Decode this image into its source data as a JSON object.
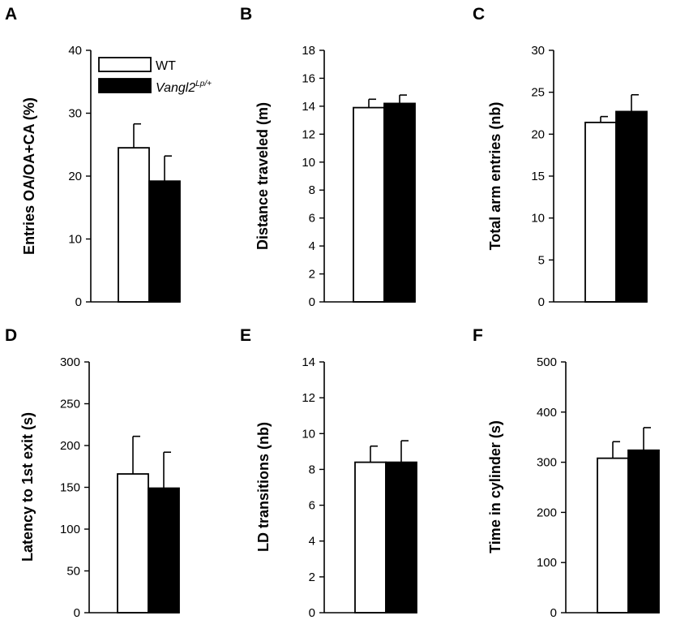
{
  "legend": {
    "series": [
      {
        "name": "WT",
        "fill": "#ffffff"
      },
      {
        "name": "Vangl2",
        "superscript": "Lp/+",
        "fill": "#000000"
      }
    ]
  },
  "chart_data": [
    {
      "panel": "A",
      "type": "bar",
      "ylabel": "Entries OA/OA+CA (%)",
      "ylim": [
        0,
        40
      ],
      "yticks": [
        0,
        10,
        20,
        30,
        40
      ],
      "series": [
        {
          "name": "WT",
          "value": 24.5,
          "error": 3.8
        },
        {
          "name": "Vangl2 Lp/+",
          "value": 19.2,
          "error": 4.0
        }
      ]
    },
    {
      "panel": "B",
      "type": "bar",
      "ylabel": "Distance traveled (m)",
      "ylim": [
        0,
        18
      ],
      "yticks": [
        0,
        2,
        4,
        6,
        8,
        10,
        12,
        14,
        16,
        18
      ],
      "series": [
        {
          "name": "WT",
          "value": 13.9,
          "error": 0.6
        },
        {
          "name": "Vangl2 Lp/+",
          "value": 14.2,
          "error": 0.6
        }
      ]
    },
    {
      "panel": "C",
      "type": "bar",
      "ylabel": "Total arm entries (nb)",
      "ylim": [
        0,
        30
      ],
      "yticks": [
        0,
        5,
        10,
        15,
        20,
        25,
        30
      ],
      "series": [
        {
          "name": "WT",
          "value": 21.4,
          "error": 0.7
        },
        {
          "name": "Vangl2 Lp/+",
          "value": 22.7,
          "error": 2.0
        }
      ]
    },
    {
      "panel": "D",
      "type": "bar",
      "ylabel": "Latency to 1st exit (s)",
      "ylim": [
        0,
        300
      ],
      "yticks": [
        0,
        50,
        100,
        150,
        200,
        250,
        300
      ],
      "series": [
        {
          "name": "WT",
          "value": 166,
          "error": 45
        },
        {
          "name": "Vangl2 Lp/+",
          "value": 149,
          "error": 43
        }
      ]
    },
    {
      "panel": "E",
      "type": "bar",
      "ylabel": "LD transitions (nb)",
      "ylim": [
        0,
        14
      ],
      "yticks": [
        0,
        2,
        4,
        6,
        8,
        10,
        12,
        14
      ],
      "series": [
        {
          "name": "WT",
          "value": 8.4,
          "error": 0.9
        },
        {
          "name": "Vangl2 Lp/+",
          "value": 8.4,
          "error": 1.2
        }
      ]
    },
    {
      "panel": "F",
      "type": "bar",
      "ylabel": "Time in cylinder (s)",
      "ylim": [
        0,
        500
      ],
      "yticks": [
        0,
        100,
        200,
        300,
        400,
        500
      ],
      "series": [
        {
          "name": "WT",
          "value": 308,
          "error": 33
        },
        {
          "name": "Vangl2 Lp/+",
          "value": 324,
          "error": 45
        }
      ]
    }
  ]
}
